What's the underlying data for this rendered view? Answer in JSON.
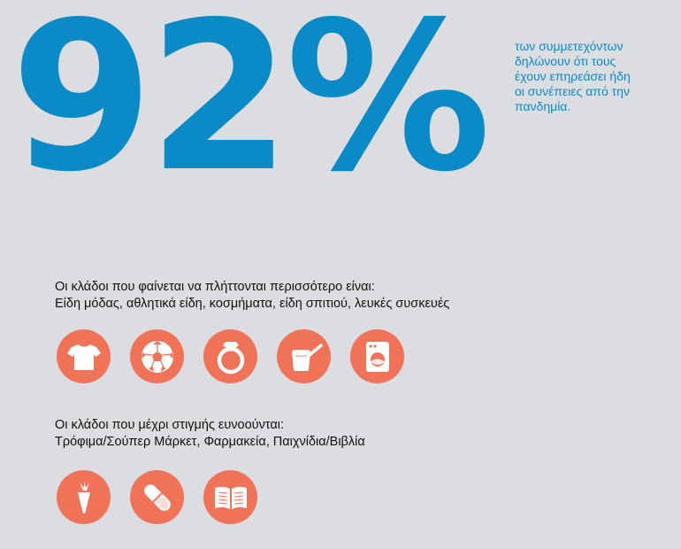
{
  "stat": {
    "value": "92%",
    "caption_lines": [
      "των συμμετεχόντων",
      "δηλώνουν ότι τους",
      "έχουν επηρεάσει ήδη",
      "οι συνέπειες από την",
      "πανδημία."
    ]
  },
  "affected": {
    "lines": [
      "Οι κλάδοι που φαίνεται να πλήττονται περισσότερο είναι:",
      "Είδη μόδας, αθλητικά είδη, κοσμήματα, είδη σπιτιού, λευκές συσκευές"
    ],
    "icons": [
      "tshirt-icon",
      "soccer-ball-icon",
      "ring-icon",
      "cooking-pot-icon",
      "washing-machine-icon"
    ]
  },
  "benefiting": {
    "lines": [
      "Οι κλάδοι που μέχρι στιγμής ευνοούνται:",
      "Τρόφιμα/Σούπερ Μάρκετ, Φαρμακεία, Παιχνίδια/Βιβλία"
    ],
    "icons": [
      "carrot-icon",
      "pill-capsule-icon",
      "open-book-icon"
    ]
  },
  "colors": {
    "background": "#dcdde1",
    "accent_blue": "#0a8ac6",
    "icon_circle": "#f07257"
  }
}
